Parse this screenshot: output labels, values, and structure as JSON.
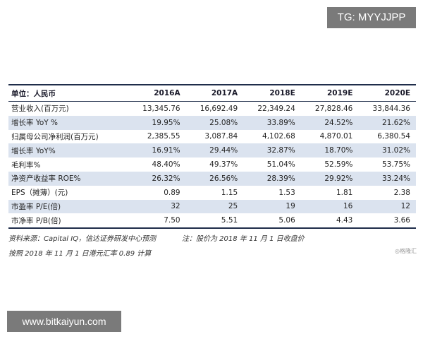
{
  "watermarks": {
    "tg": "TG: MYYJJPP",
    "site": "www.bitkaiyun.com",
    "logo": "◎格隆汇"
  },
  "table": {
    "header_label": "单位：人民币",
    "years": [
      "2016A",
      "2017A",
      "2018E",
      "2019E",
      "2020E"
    ],
    "rows": [
      {
        "label": "营业收入(百万元)",
        "values": [
          "13,345.76",
          "16,692.49",
          "22,349.24",
          "27,828.46",
          "33,844.36"
        ],
        "shaded": false
      },
      {
        "label": "增长率 YoY %",
        "values": [
          "19.95%",
          "25.08%",
          "33.89%",
          "24.52%",
          "21.62%"
        ],
        "shaded": true
      },
      {
        "label": "归属母公司净利润(百万元)",
        "values": [
          "2,385.55",
          "3,087.84",
          "4,102.68",
          "4,870.01",
          "6,380.54"
        ],
        "shaded": false
      },
      {
        "label": "增长率 YoY%",
        "values": [
          "16.91%",
          "29.44%",
          "32.87%",
          "18.70%",
          "31.02%"
        ],
        "shaded": true
      },
      {
        "label": "毛利率%",
        "values": [
          "48.40%",
          "49.37%",
          "51.04%",
          "52.59%",
          "53.75%"
        ],
        "shaded": false
      },
      {
        "label": "净资产收益率 ROE%",
        "values": [
          "26.32%",
          "26.56%",
          "28.39%",
          "29.92%",
          "33.24%"
        ],
        "shaded": true
      },
      {
        "label": "EPS（摊薄）(元)",
        "values": [
          "0.89",
          "1.15",
          "1.53",
          "1.81",
          "2.38"
        ],
        "shaded": false
      },
      {
        "label": "市盈率 P/E(倍)",
        "values": [
          "32",
          "25",
          "19",
          "16",
          "12"
        ],
        "shaded": true
      },
      {
        "label": "市净率 P/B(倍)",
        "values": [
          "7.50",
          "5.51",
          "5.06",
          "4.43",
          "3.66"
        ],
        "shaded": false
      }
    ]
  },
  "notes": {
    "source": "资料来源：Capital IQ，信达证券研发中心预测",
    "price_note": "注：股价为 2018 年 11 月 1 日收盘价",
    "fx_note": "按照 2018 年 11 月 1 日港元汇率 0.89 计算"
  }
}
